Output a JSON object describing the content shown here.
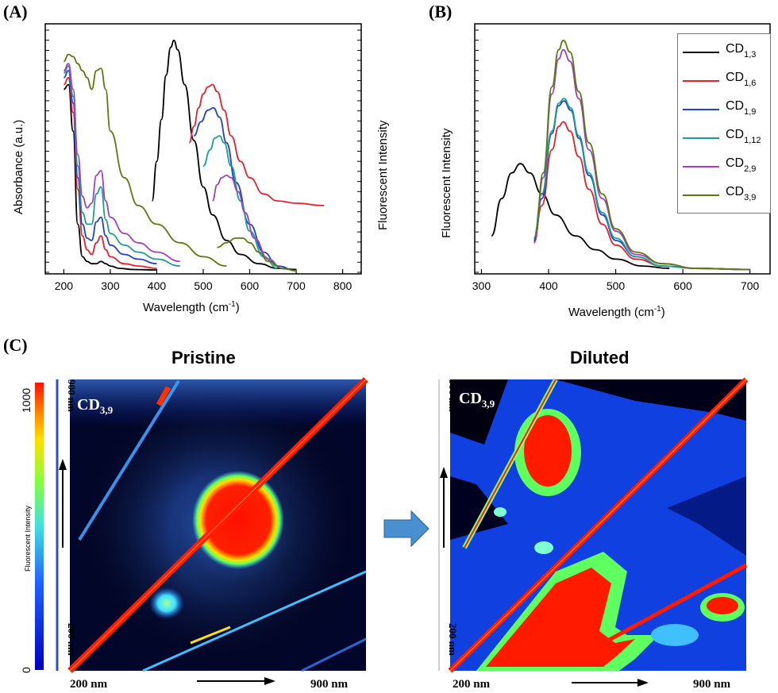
{
  "panels": {
    "a": "(A)",
    "b": "(B)",
    "c": "(C)"
  },
  "chart_data": [
    {
      "id": "A",
      "type": "line",
      "xlabel": "Wavelength (cm",
      "xlabel_sup": "-1",
      "xlabel_end": ")",
      "ylabel_left": "Absorbance (a.u.)",
      "ylabel_right": "Fluorescent Intensity",
      "xlim": [
        160,
        840
      ],
      "ylim": [
        0,
        100
      ],
      "xticks": [
        "200",
        "300",
        "400",
        "500",
        "600",
        "700",
        "800"
      ],
      "xtick_values": [
        200,
        300,
        400,
        500,
        600,
        700,
        800
      ],
      "series": [
        {
          "color": "#000000",
          "points": [
            [
              200,
              78
            ],
            [
              210,
              80
            ],
            [
              220,
              60
            ],
            [
              230,
              20
            ],
            [
              240,
              6
            ],
            [
              250,
              4
            ],
            [
              260,
              3
            ],
            [
              270,
              3
            ],
            [
              280,
              4
            ],
            [
              290,
              3
            ],
            [
              300,
              2
            ],
            [
              320,
              1
            ],
            [
              350,
              0.5
            ],
            [
              400,
              0.3
            ]
          ]
        },
        {
          "color": "#e8202a",
          "points": [
            [
              200,
              80
            ],
            [
              210,
              83
            ],
            [
              220,
              68
            ],
            [
              230,
              35
            ],
            [
              240,
              15
            ],
            [
              250,
              9
            ],
            [
              260,
              7
            ],
            [
              270,
              12
            ],
            [
              280,
              15
            ],
            [
              290,
              9
            ],
            [
              300,
              6
            ],
            [
              330,
              3
            ],
            [
              360,
              2
            ],
            [
              400,
              1
            ]
          ]
        },
        {
          "color": "#2040d0",
          "points": [
            [
              200,
              83
            ],
            [
              210,
              86
            ],
            [
              220,
              72
            ],
            [
              230,
              40
            ],
            [
              240,
              20
            ],
            [
              250,
              14
            ],
            [
              260,
              13
            ],
            [
              270,
              21
            ],
            [
              280,
              23
            ],
            [
              290,
              15
            ],
            [
              300,
              11
            ],
            [
              330,
              7
            ],
            [
              360,
              5
            ],
            [
              400,
              3
            ]
          ]
        },
        {
          "color": "#18a090",
          "points": [
            [
              200,
              85
            ],
            [
              210,
              88
            ],
            [
              220,
              75
            ],
            [
              230,
              45
            ],
            [
              240,
              25
            ],
            [
              250,
              20
            ],
            [
              260,
              20
            ],
            [
              270,
              33
            ],
            [
              280,
              36
            ],
            [
              290,
              22
            ],
            [
              300,
              16
            ],
            [
              330,
              11
            ],
            [
              360,
              8
            ],
            [
              400,
              5
            ],
            [
              450,
              2
            ]
          ]
        },
        {
          "color": "#a040c0",
          "points": [
            [
              200,
              86
            ],
            [
              210,
              89
            ],
            [
              220,
              78
            ],
            [
              230,
              50
            ],
            [
              240,
              32
            ],
            [
              250,
              27
            ],
            [
              260,
              29
            ],
            [
              270,
              41
            ],
            [
              280,
              43
            ],
            [
              290,
              30
            ],
            [
              300,
              23
            ],
            [
              330,
              16
            ],
            [
              360,
              12
            ],
            [
              400,
              8
            ],
            [
              450,
              4
            ]
          ]
        },
        {
          "color": "#5a7a10",
          "points": [
            [
              200,
              90
            ],
            [
              210,
              93
            ],
            [
              220,
              92
            ],
            [
              230,
              89
            ],
            [
              240,
              86
            ],
            [
              250,
              83
            ],
            [
              260,
              78
            ],
            [
              270,
              86
            ],
            [
              280,
              87
            ],
            [
              290,
              78
            ],
            [
              300,
              60
            ],
            [
              330,
              40
            ],
            [
              360,
              28
            ],
            [
              400,
              20
            ],
            [
              450,
              12
            ],
            [
              500,
              6
            ],
            [
              550,
              2
            ]
          ]
        },
        {
          "color": "#000000",
          "points": [
            [
              390,
              30
            ],
            [
              400,
              47
            ],
            [
              410,
              65
            ],
            [
              420,
              84
            ],
            [
              430,
              96
            ],
            [
              437,
              99
            ],
            [
              445,
              95
            ],
            [
              460,
              80
            ],
            [
              480,
              56
            ],
            [
              500,
              36
            ],
            [
              520,
              24
            ],
            [
              550,
              13
            ],
            [
              580,
              7
            ],
            [
              620,
              3
            ],
            [
              660,
              1
            ],
            [
              700,
              0.5
            ]
          ]
        },
        {
          "color": "#e8202a",
          "points": [
            [
              470,
              55
            ],
            [
              480,
              62
            ],
            [
              490,
              70
            ],
            [
              500,
              76
            ],
            [
              510,
              79
            ],
            [
              520,
              80
            ],
            [
              530,
              77
            ],
            [
              545,
              69
            ],
            [
              560,
              58
            ],
            [
              580,
              47
            ],
            [
              600,
              40
            ],
            [
              630,
              33
            ],
            [
              660,
              30
            ],
            [
              700,
              29
            ],
            [
              760,
              28
            ]
          ]
        },
        {
          "color": "#2040d0",
          "points": [
            [
              480,
              58
            ],
            [
              495,
              64
            ],
            [
              510,
              69
            ],
            [
              522,
              70
            ],
            [
              535,
              66
            ],
            [
              550,
              55
            ],
            [
              570,
              38
            ],
            [
              600,
              20
            ],
            [
              630,
              8
            ],
            [
              660,
              2
            ],
            [
              700,
              0
            ]
          ]
        },
        {
          "color": "#18a090",
          "points": [
            [
              500,
              45
            ],
            [
              515,
              52
            ],
            [
              525,
              57
            ],
            [
              535,
              58
            ],
            [
              545,
              55
            ],
            [
              560,
              45
            ],
            [
              580,
              30
            ],
            [
              600,
              17
            ],
            [
              630,
              6
            ],
            [
              660,
              1
            ]
          ]
        },
        {
          "color": "#a040c0",
          "points": [
            [
              520,
              30
            ],
            [
              530,
              37
            ],
            [
              540,
              40
            ],
            [
              550,
              41
            ],
            [
              560,
              40
            ],
            [
              575,
              34
            ],
            [
              590,
              25
            ],
            [
              610,
              14
            ],
            [
              640,
              5
            ],
            [
              670,
              1
            ]
          ]
        },
        {
          "color": "#5a7a10",
          "points": [
            [
              530,
              10
            ],
            [
              550,
              12
            ],
            [
              570,
              14
            ],
            [
              585,
              14
            ],
            [
              600,
              12
            ],
            [
              620,
              8
            ],
            [
              640,
              4
            ],
            [
              670,
              1
            ],
            [
              700,
              0
            ]
          ]
        }
      ]
    },
    {
      "id": "B",
      "type": "line",
      "xlabel": "Wavelength (cm",
      "xlabel_sup": "-1",
      "xlabel_end": ")",
      "ylabel": "Fluorescent Intensity",
      "xlim": [
        290,
        730
      ],
      "ylim": [
        0,
        100
      ],
      "xticks": [
        "300",
        "400",
        "500",
        "600",
        "700"
      ],
      "xtick_values": [
        300,
        400,
        500,
        600,
        700
      ],
      "legend": {
        "position": "top-right",
        "entries": [
          {
            "label": "CD",
            "sub": "1,3",
            "color": "#000000"
          },
          {
            "label": "CD",
            "sub": "1,6",
            "color": "#e8202a"
          },
          {
            "label": "CD",
            "sub": "1,9",
            "color": "#2040d0"
          },
          {
            "label": "CD",
            "sub": "1,12",
            "color": "#18a090"
          },
          {
            "label": "CD",
            "sub": "2,9",
            "color": "#a040c0"
          },
          {
            "label": "CD",
            "sub": "3,9",
            "color": "#5a7a10"
          }
        ]
      },
      "series": [
        {
          "name": "CD1,3",
          "color": "#000000",
          "points": [
            [
              315,
              15
            ],
            [
              330,
              31
            ],
            [
              345,
              42
            ],
            [
              358,
              46
            ],
            [
              372,
              42
            ],
            [
              390,
              33
            ],
            [
              410,
              24
            ],
            [
              440,
              15
            ],
            [
              470,
              9
            ],
            [
              500,
              5
            ],
            [
              540,
              2
            ],
            [
              580,
              1
            ]
          ]
        },
        {
          "name": "CD1,6",
          "color": "#e8202a",
          "points": [
            [
              378,
              12
            ],
            [
              390,
              28
            ],
            [
              405,
              52
            ],
            [
              415,
              62
            ],
            [
              422,
              64
            ],
            [
              432,
              60
            ],
            [
              445,
              49
            ],
            [
              460,
              35
            ],
            [
              480,
              20
            ],
            [
              500,
              11
            ],
            [
              530,
              5
            ],
            [
              570,
              2
            ],
            [
              620,
              1
            ],
            [
              700,
              0.5
            ]
          ]
        },
        {
          "name": "CD1,9",
          "color": "#2040d0",
          "points": [
            [
              378,
              13
            ],
            [
              390,
              31
            ],
            [
              405,
              59
            ],
            [
              415,
              71
            ],
            [
              423,
              73
            ],
            [
              433,
              69
            ],
            [
              445,
              57
            ],
            [
              460,
              41
            ],
            [
              480,
              24
            ],
            [
              500,
              13
            ],
            [
              530,
              6
            ],
            [
              570,
              2
            ],
            [
              620,
              1
            ],
            [
              700,
              0.5
            ]
          ]
        },
        {
          "name": "CD1,12",
          "color": "#18a090",
          "points": [
            [
              378,
              14
            ],
            [
              390,
              33
            ],
            [
              405,
              60
            ],
            [
              415,
              72
            ],
            [
              423,
              74
            ],
            [
              433,
              70
            ],
            [
              445,
              58
            ],
            [
              460,
              42
            ],
            [
              480,
              25
            ],
            [
              500,
              14
            ],
            [
              530,
              6
            ],
            [
              570,
              2
            ],
            [
              620,
              1
            ],
            [
              700,
              0.5
            ]
          ]
        },
        {
          "name": "CD2,9",
          "color": "#a040c0",
          "points": [
            [
              380,
              15
            ],
            [
              392,
              40
            ],
            [
              405,
              76
            ],
            [
              415,
              91
            ],
            [
              422,
              95
            ],
            [
              432,
              90
            ],
            [
              445,
              74
            ],
            [
              460,
              52
            ],
            [
              480,
              31
            ],
            [
              500,
              17
            ],
            [
              530,
              7
            ],
            [
              570,
              3
            ],
            [
              620,
              1
            ],
            [
              700,
              0.5
            ]
          ]
        },
        {
          "name": "CD3,9",
          "color": "#5a7a10",
          "points": [
            [
              380,
              16
            ],
            [
              392,
              42
            ],
            [
              405,
              79
            ],
            [
              415,
              95
            ],
            [
              422,
              99
            ],
            [
              432,
              94
            ],
            [
              445,
              77
            ],
            [
              460,
              55
            ],
            [
              480,
              33
            ],
            [
              500,
              18
            ],
            [
              530,
              8
            ],
            [
              570,
              3
            ],
            [
              620,
              1
            ],
            [
              700,
              0.5
            ]
          ]
        }
      ]
    }
  ],
  "heatmaps": {
    "pristine_title": "Pristine",
    "diluted_title": "Diluted",
    "sample_label": "CD",
    "sample_sub": "3,9",
    "x_start": "200 nm",
    "x_end": "900 nm",
    "y_top": "900 nm",
    "y_bottom": "200 nm",
    "colorbar_max": "1000",
    "colorbar_min": "0",
    "colorbar_label": "Fluorescent Intensity"
  }
}
